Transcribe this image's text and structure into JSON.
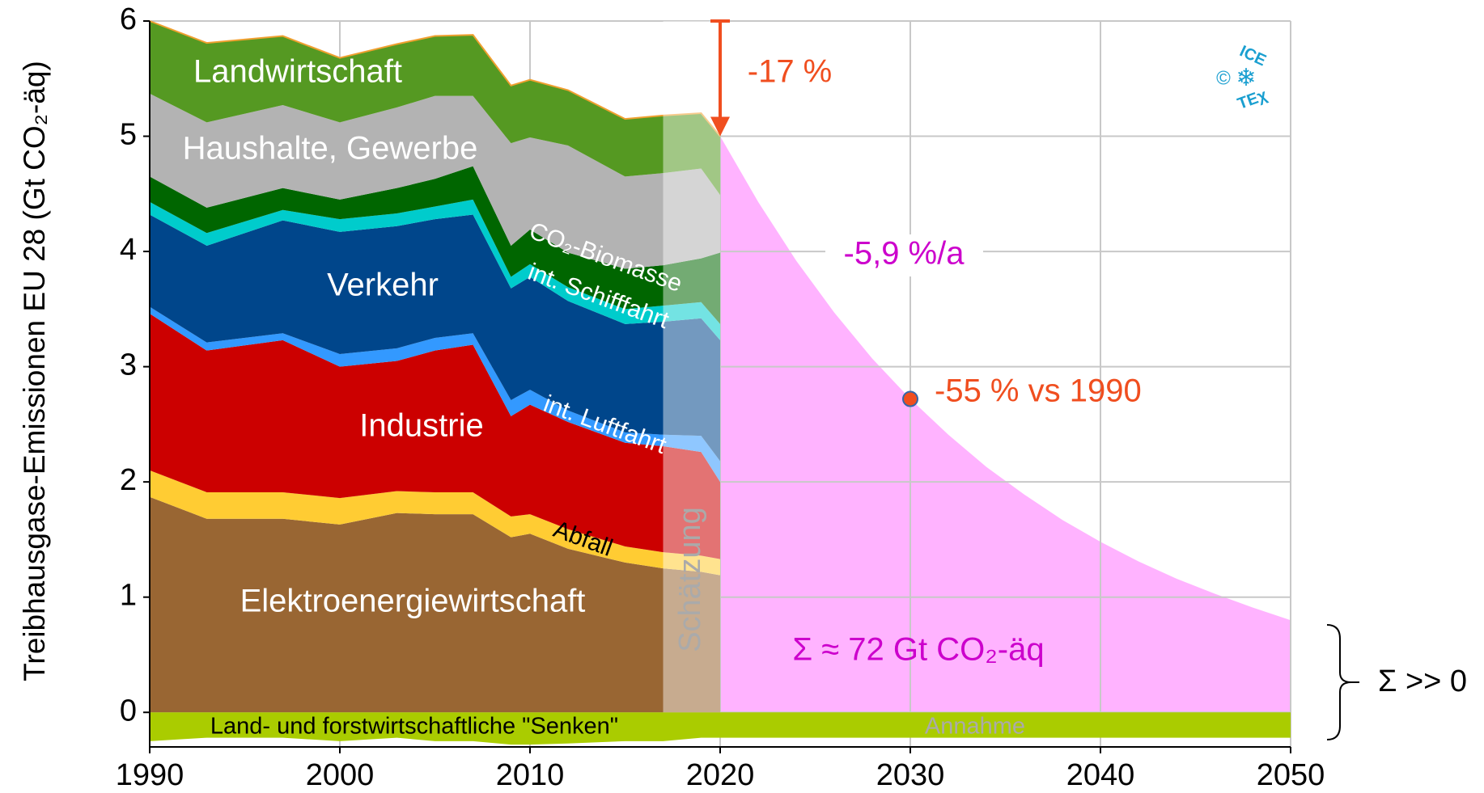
{
  "chart_data": {
    "type": "stacked_area",
    "ylabel": "Treibhausgase-Emissionen EU 28 (Gt CO₂-äq)",
    "x": [
      1990,
      1993,
      1997,
      2000,
      2003,
      2005,
      2007,
      2009,
      2010,
      2012,
      2015,
      2017,
      2019,
      2020
    ],
    "series": [
      {
        "name": "Elektroenergiewirtschaft",
        "color": "#996633",
        "label_color": "#ffffff",
        "values": [
          1.87,
          1.68,
          1.68,
          1.63,
          1.73,
          1.72,
          1.72,
          1.52,
          1.55,
          1.42,
          1.3,
          1.25,
          1.22,
          1.19
        ]
      },
      {
        "name": "Abfall",
        "color": "#ffcc33",
        "label_color": "#000000",
        "values": [
          0.23,
          0.23,
          0.23,
          0.23,
          0.19,
          0.19,
          0.19,
          0.18,
          0.17,
          0.17,
          0.14,
          0.14,
          0.14,
          0.14
        ]
      },
      {
        "name": "Industrie",
        "color": "#cc0000",
        "label_color": "#ffffff",
        "values": [
          1.36,
          1.23,
          1.32,
          1.14,
          1.13,
          1.23,
          1.28,
          0.87,
          0.95,
          0.93,
          0.9,
          0.92,
          0.9,
          0.67
        ]
      },
      {
        "name": "int. Luftfahrt",
        "color": "#3399ff",
        "label_color": "#ffffff",
        "values": [
          0.06,
          0.07,
          0.06,
          0.11,
          0.11,
          0.11,
          0.1,
          0.14,
          0.13,
          0.1,
          0.09,
          0.1,
          0.14,
          0.18
        ]
      },
      {
        "name": "Verkehr",
        "color": "#00468b",
        "label_color": "#ffffff",
        "values": [
          0.8,
          0.84,
          0.98,
          1.06,
          1.06,
          1.03,
          1.03,
          0.97,
          0.98,
          0.95,
          0.94,
          0.98,
          1.02,
          1.05
        ]
      },
      {
        "name": "int. Schifffahrt",
        "color": "#00cccc",
        "label_color": "#ffffff",
        "values": [
          0.11,
          0.11,
          0.09,
          0.11,
          0.11,
          0.11,
          0.13,
          0.1,
          0.11,
          0.12,
          0.13,
          0.14,
          0.14,
          0.14
        ]
      },
      {
        "name": "CO₂-Biomasse",
        "color": "#006600",
        "label_color": "#ffffff",
        "values": [
          0.22,
          0.22,
          0.19,
          0.17,
          0.22,
          0.24,
          0.29,
          0.27,
          0.3,
          0.3,
          0.35,
          0.35,
          0.38,
          0.62
        ]
      },
      {
        "name": "Haushalte, Gewerbe",
        "color": "#b3b3b3",
        "label_color": "#ffffff",
        "values": [
          0.72,
          0.74,
          0.72,
          0.67,
          0.7,
          0.72,
          0.61,
          0.89,
          0.8,
          0.93,
          0.8,
          0.8,
          0.78,
          0.5
        ]
      },
      {
        "name": "Landwirtschaft",
        "color": "#559922",
        "label_color": "#ffffff",
        "values": [
          0.63,
          0.69,
          0.6,
          0.56,
          0.55,
          0.52,
          0.53,
          0.5,
          0.5,
          0.48,
          0.5,
          0.5,
          0.48,
          0.51
        ]
      },
      {
        "name": "Land- und forstwirtschaftliche \"Senken\"",
        "color": "#aacc00",
        "label_color": "#000000",
        "values": [
          -0.25,
          -0.22,
          -0.22,
          -0.25,
          -0.22,
          -0.25,
          -0.25,
          -0.28,
          -0.28,
          -0.27,
          -0.25,
          -0.25,
          -0.22,
          -0.22
        ]
      }
    ],
    "estimate": {
      "label": "Schätzung",
      "range": [
        2017,
        2020
      ]
    },
    "assumption": {
      "label": "Annahme",
      "x": [
        2020,
        2050
      ],
      "values": [
        -0.22,
        -0.22
      ]
    },
    "projection": {
      "color": "#ffb3ff",
      "label": "-5,9 %/a",
      "sum_label": "Σ ≈ 72 Gt CO₂-äq",
      "x": [
        2020,
        2022,
        2024,
        2026,
        2028,
        2030,
        2032,
        2034,
        2036,
        2038,
        2040,
        2042,
        2044,
        2046,
        2048,
        2050
      ],
      "values": [
        5.0,
        4.43,
        3.92,
        3.47,
        3.07,
        2.72,
        2.41,
        2.13,
        1.89,
        1.67,
        1.48,
        1.31,
        1.16,
        1.03,
        0.91,
        0.8
      ]
    },
    "annotations": {
      "reduction": "-17 %",
      "target": "-55 % vs 1990",
      "remaining": "Σ >> 0",
      "reduction_from": 6,
      "reduction_to": 5.0,
      "reduction_year": 2020
    },
    "logo": {
      "top": "ICE",
      "bottom": "TEχ",
      "copyright": "©",
      "icon": "❄"
    },
    "xlim": [
      1990,
      2050
    ],
    "xticks": [
      1990,
      2000,
      2010,
      2020,
      2030,
      2040,
      2050
    ],
    "ylim": [
      -0.3,
      6
    ],
    "yticks": [
      0,
      1,
      2,
      3,
      4,
      5,
      6
    ],
    "grid": true
  }
}
